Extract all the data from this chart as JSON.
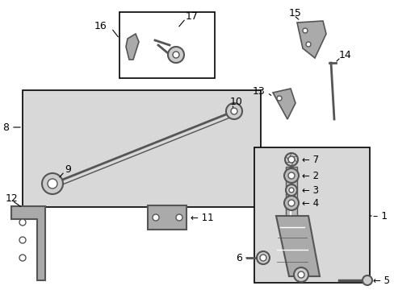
{
  "bg_color": "#ffffff",
  "line_color": "#000000",
  "part_color": "#555555",
  "light_gray": "#d8d8d8",
  "fig_width": 4.89,
  "fig_height": 3.6,
  "dpi": 100
}
